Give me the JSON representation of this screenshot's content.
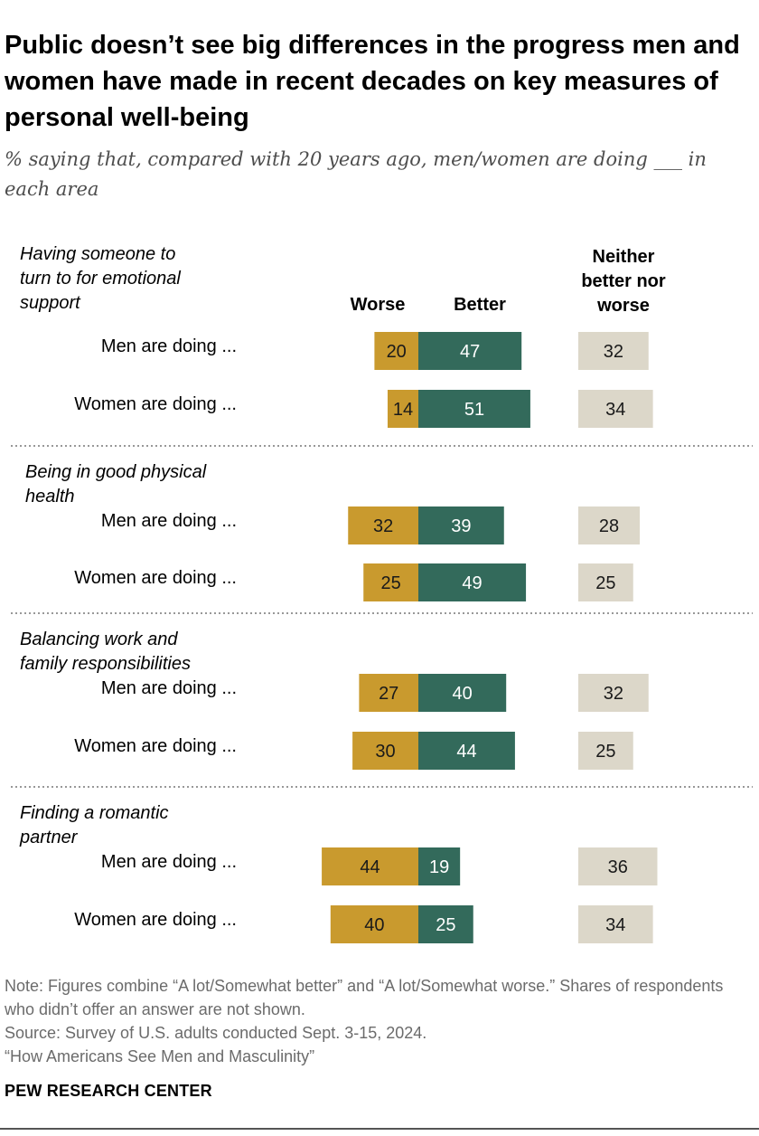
{
  "title": "Public doesn’t see big differences in the progress men and women have made in recent decades on key measures of personal well-being",
  "subtitle": "% saying that, compared with 20 years ago, men/women are doing ___ in each area",
  "colors": {
    "worse": "#c99a2e",
    "better": "#336a5b",
    "neither": "#dcd7c9",
    "divider": "#777777",
    "label_text": "#000000"
  },
  "chart_data": {
    "type": "bar",
    "orientation": "horizontal",
    "stacking": "diverging",
    "column_headers": {
      "worse": "Worse",
      "better": "Better",
      "neither": "Neither better nor worse"
    },
    "series": [
      {
        "name": "Worse",
        "values": [
          20,
          14,
          32,
          25,
          27,
          30,
          44,
          40
        ]
      },
      {
        "name": "Better",
        "values": [
          47,
          51,
          39,
          49,
          40,
          44,
          19,
          25
        ]
      },
      {
        "name": "Neither better nor worse",
        "values": [
          32,
          34,
          28,
          25,
          32,
          25,
          36,
          34
        ]
      }
    ],
    "groups": [
      {
        "label": "Having someone to turn to for emotional support",
        "rows": [
          {
            "label": "Men are doing ...",
            "worse": 20,
            "better": 47,
            "neither": 32
          },
          {
            "label": "Women are doing ...",
            "worse": 14,
            "better": 51,
            "neither": 34
          }
        ]
      },
      {
        "label": "Being in good physical health",
        "rows": [
          {
            "label": "Men are doing ...",
            "worse": 32,
            "better": 39,
            "neither": 28
          },
          {
            "label": "Women are doing ...",
            "worse": 25,
            "better": 49,
            "neither": 25
          }
        ]
      },
      {
        "label": "Balancing work and family responsibilities",
        "rows": [
          {
            "label": "Men are doing ...",
            "worse": 27,
            "better": 40,
            "neither": 32
          },
          {
            "label": "Women are doing ...",
            "worse": 30,
            "better": 44,
            "neither": 25
          }
        ]
      },
      {
        "label": "Finding a romantic partner",
        "rows": [
          {
            "label": "Men are doing ...",
            "worse": 44,
            "better": 19,
            "neither": 36
          },
          {
            "label": "Women are doing ...",
            "worse": 40,
            "better": 25,
            "neither": 34
          }
        ]
      }
    ]
  },
  "notes": {
    "note": "Note: Figures combine “A lot/Somewhat better” and “A lot/Somewhat worse.” Shares of respondents who didn’t offer an answer are not shown.",
    "source": "Source: Survey of U.S. adults conducted Sept. 3-15, 2024.",
    "report": "“How Americans See Men and Masculinity”"
  },
  "brand": "PEW RESEARCH CENTER"
}
